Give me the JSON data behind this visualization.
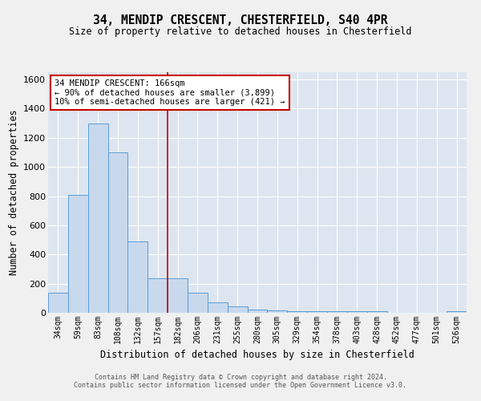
{
  "title_line1": "34, MENDIP CRESCENT, CHESTERFIELD, S40 4PR",
  "title_line2": "Size of property relative to detached houses in Chesterfield",
  "xlabel": "Distribution of detached houses by size in Chesterfield",
  "ylabel": "Number of detached properties",
  "categories": [
    "34sqm",
    "59sqm",
    "83sqm",
    "108sqm",
    "132sqm",
    "157sqm",
    "182sqm",
    "206sqm",
    "231sqm",
    "255sqm",
    "280sqm",
    "305sqm",
    "329sqm",
    "354sqm",
    "378sqm",
    "403sqm",
    "428sqm",
    "452sqm",
    "477sqm",
    "501sqm",
    "526sqm"
  ],
  "values": [
    140,
    810,
    1300,
    1100,
    490,
    235,
    235,
    140,
    70,
    45,
    22,
    15,
    10,
    10,
    10,
    12,
    10,
    0,
    0,
    0,
    12
  ],
  "bar_color": "#c8d9ed",
  "bar_edge_color": "#5b9bd5",
  "vline_x": 5.5,
  "vline_color": "#cc0000",
  "annotation_text": "34 MENDIP CRESCENT: 166sqm\n← 90% of detached houses are smaller (3,899)\n10% of semi-detached houses are larger (421) →",
  "annotation_box_color": "#ffffff",
  "annotation_box_edge": "#cc0000",
  "ylim": [
    0,
    1650
  ],
  "yticks": [
    0,
    200,
    400,
    600,
    800,
    1000,
    1200,
    1400,
    1600
  ],
  "background_color": "#dde6f0",
  "grid_color": "#ffffff",
  "fig_bg_color": "#f0f0f0",
  "footer_line1": "Contains HM Land Registry data © Crown copyright and database right 2024.",
  "footer_line2": "Contains public sector information licensed under the Open Government Licence v3.0."
}
